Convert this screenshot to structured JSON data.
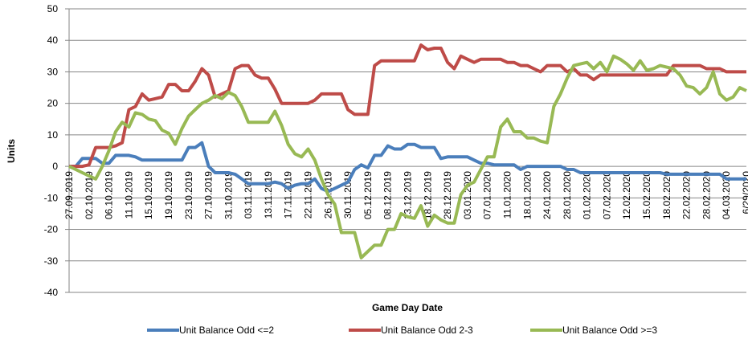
{
  "chart_data": {
    "type": "line",
    "y_label": "Units",
    "x_label": "Game Day Date",
    "categories": [
      "27.09.2019",
      null,
      null,
      "02.10.2019",
      null,
      null,
      "06.10.2019",
      null,
      null,
      "11.10.2019",
      null,
      null,
      "15.10.2019",
      null,
      null,
      "19.10.2019",
      null,
      null,
      "23.10.2019",
      null,
      null,
      "27.10.2019",
      null,
      null,
      "31.10.2019",
      null,
      null,
      "03.11.2019",
      null,
      null,
      "13.11.2019",
      null,
      null,
      "17.11.2019",
      null,
      null,
      "22.11.2019",
      null,
      null,
      "26.11.2019",
      null,
      null,
      "30.11.2019",
      null,
      null,
      "05.12.2019",
      null,
      null,
      "08.12.2019",
      null,
      null,
      "13.12.2019",
      null,
      null,
      "18.12.2019",
      null,
      null,
      "28.12.2019",
      null,
      null,
      "03.01.2020",
      null,
      null,
      "07.01.2020",
      null,
      null,
      "11.01.2020",
      null,
      null,
      "18.01.2020",
      null,
      null,
      "24.01.2020",
      null,
      null,
      "28.01.2020",
      null,
      null,
      "01.02.2020",
      null,
      null,
      "07.02.2020",
      null,
      null,
      "12.02.2020",
      null,
      null,
      "15.02.2020",
      null,
      null,
      "18.02.2020",
      null,
      null,
      "22.02.2020",
      null,
      null,
      "28.02.2020",
      null,
      null,
      "04.03.2020",
      null,
      null,
      "6/29/2020"
    ],
    "series": [
      {
        "name": "Unit Balance Odd <=2",
        "color": "#4a7ebb",
        "values": [
          0,
          0,
          2.5,
          2.5,
          2.5,
          1,
          1,
          3.5,
          3.5,
          3.5,
          3,
          2,
          2,
          2,
          2,
          2,
          2,
          2,
          6,
          6,
          7.5,
          0,
          -2,
          -2,
          -2,
          -2.5,
          -4,
          -5.5,
          -5.5,
          -5.5,
          -5.5,
          -5,
          -5.5,
          -7,
          -6,
          -5.5,
          -5.5,
          -4,
          -7,
          -8,
          -7,
          -6,
          -5,
          -1,
          0.5,
          -0.5,
          3.5,
          3.5,
          6.5,
          5.5,
          5.5,
          7,
          7,
          6,
          6,
          6,
          2.5,
          3,
          3,
          3,
          3,
          2,
          1,
          1,
          0.5,
          0.5,
          0.5,
          0.5,
          -1,
          0,
          0,
          0,
          0,
          0,
          0,
          -1,
          -1,
          -2,
          -2,
          -2,
          -2,
          -2,
          -2,
          -2,
          -2,
          -2,
          -2,
          -2,
          -2,
          -2,
          -2.5,
          -2.5,
          -2.5,
          -2.5,
          -2.5,
          -2.5,
          -2.5,
          -2.5,
          -2.5,
          -4,
          -4,
          -4,
          -4
        ]
      },
      {
        "name": "Unit Balance Odd 2-3",
        "color": "#be4b48",
        "values": [
          0,
          0,
          0,
          0.5,
          6,
          6,
          6,
          6.5,
          7.5,
          18,
          19,
          23,
          21,
          21.5,
          22,
          26,
          26,
          24,
          24,
          27,
          31,
          29,
          22,
          23,
          24,
          31,
          32,
          32,
          29,
          28,
          28,
          24.5,
          20,
          20,
          20,
          20,
          20,
          21,
          23,
          23,
          23,
          23,
          18,
          16.5,
          16.5,
          16.5,
          32,
          33.5,
          33.5,
          33.5,
          33.5,
          33.5,
          33.5,
          38.5,
          37,
          37.5,
          37.5,
          33,
          31,
          35,
          34,
          33,
          34,
          34,
          34,
          34,
          33,
          33,
          32,
          32,
          31,
          30,
          32,
          32,
          32,
          30,
          31,
          29,
          29,
          27.5,
          29,
          29,
          29,
          29,
          29,
          29,
          29,
          29,
          29,
          29,
          29,
          32,
          32,
          32,
          32,
          32,
          31,
          31,
          31,
          30,
          30,
          30,
          30
        ]
      },
      {
        "name": "Unit Balance Odd >=3",
        "color": "#98b954",
        "values": [
          0,
          -1,
          -2,
          -3,
          -4,
          0,
          5,
          11,
          14,
          12.5,
          17,
          16.5,
          15,
          14.5,
          11.5,
          10.5,
          7,
          12,
          16,
          18,
          20,
          21,
          22.5,
          21.5,
          23.5,
          22.5,
          19,
          14,
          14,
          14,
          14,
          17.5,
          13,
          7,
          4,
          3,
          5.5,
          2,
          -4,
          -9,
          -12,
          -21,
          -21,
          -21,
          -29,
          -27,
          -25,
          -25,
          -20,
          -20,
          -15,
          -16,
          -16.5,
          -12.5,
          -19,
          -15.5,
          -17,
          -18,
          -18,
          -9,
          -6,
          -5,
          -1,
          3,
          3,
          12.5,
          15,
          11,
          11,
          9,
          9,
          8,
          7.5,
          19,
          23,
          28,
          32,
          32.5,
          33,
          31,
          33,
          30,
          35,
          34,
          32.5,
          30.5,
          33.5,
          30.5,
          31,
          32,
          31.5,
          31,
          29,
          25.5,
          25,
          23,
          25,
          30,
          23,
          21,
          22,
          25,
          24
        ]
      }
    ],
    "ylim": [
      -40,
      50
    ],
    "yticks": [
      -40,
      -30,
      -20,
      -10,
      0,
      10,
      20,
      30,
      40,
      50
    ],
    "grid": true,
    "legend": "bottom"
  }
}
